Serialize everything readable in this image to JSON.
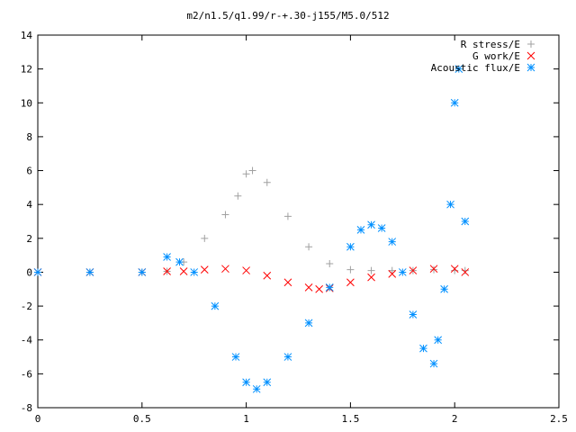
{
  "chart_data": {
    "type": "scatter",
    "title": "m2/n1.5/q1.99/r-+.30-j155/M5.0/512",
    "xlabel": "",
    "ylabel": "",
    "xlim": [
      0,
      2.5
    ],
    "ylim": [
      -8,
      14
    ],
    "x_ticks": [
      0,
      0.5,
      1,
      1.5,
      2,
      2.5
    ],
    "x_tick_labels": [
      "0",
      "0.5",
      "1",
      "1.5",
      "2",
      "2.5"
    ],
    "y_ticks": [
      -8,
      -6,
      -4,
      -2,
      0,
      2,
      4,
      6,
      8,
      10,
      12,
      14
    ],
    "y_tick_labels": [
      "-8",
      "-6",
      "-4",
      "-2",
      "0",
      "2",
      "4",
      "6",
      "8",
      "10",
      "12",
      "14"
    ],
    "grid": false,
    "legend_position": "top-right",
    "series": [
      {
        "name": "R stress/E",
        "color": "#a0a0a0",
        "marker": "plus",
        "x": [
          0.0,
          0.25,
          0.5,
          0.62,
          0.7,
          0.8,
          0.9,
          0.96,
          1.0,
          1.03,
          1.1,
          1.2,
          1.3,
          1.4,
          1.5,
          1.6,
          1.7,
          1.8,
          1.9,
          2.0,
          2.05
        ],
        "y": [
          0.0,
          0.0,
          0.0,
          0.05,
          0.6,
          2.0,
          3.4,
          4.5,
          5.8,
          6.0,
          5.3,
          3.3,
          1.5,
          0.5,
          0.15,
          0.1,
          0.1,
          0.1,
          0.15,
          0.1,
          0.1
        ]
      },
      {
        "name": "G work/E",
        "color": "#ff0000",
        "marker": "cross",
        "x": [
          0.0,
          0.25,
          0.5,
          0.62,
          0.7,
          0.8,
          0.9,
          1.0,
          1.1,
          1.2,
          1.3,
          1.35,
          1.4,
          1.5,
          1.6,
          1.7,
          1.8,
          1.9,
          2.0,
          2.05
        ],
        "y": [
          0.0,
          0.0,
          0.0,
          0.05,
          0.05,
          0.15,
          0.2,
          0.1,
          -0.2,
          -0.6,
          -0.9,
          -1.0,
          -0.95,
          -0.6,
          -0.3,
          -0.1,
          0.1,
          0.2,
          0.2,
          0.0
        ]
      },
      {
        "name": "Acoustic flux/E",
        "color": "#0090ff",
        "marker": "star",
        "x": [
          0.0,
          0.25,
          0.5,
          0.62,
          0.68,
          0.75,
          0.85,
          0.95,
          1.0,
          1.05,
          1.1,
          1.2,
          1.3,
          1.4,
          1.5,
          1.55,
          1.6,
          1.65,
          1.7,
          1.75,
          1.8,
          1.85,
          1.9,
          1.92,
          1.95,
          1.98,
          2.0,
          2.02,
          2.05
        ],
        "y": [
          0.0,
          0.0,
          0.0,
          0.9,
          0.6,
          0.0,
          -2.0,
          -5.0,
          -6.5,
          -6.9,
          -6.5,
          -5.0,
          -3.0,
          -0.9,
          1.5,
          2.5,
          2.8,
          2.6,
          1.8,
          0.0,
          -2.5,
          -4.5,
          -5.4,
          -4.0,
          -1.0,
          4.0,
          10.0,
          12.0,
          3.0
        ]
      }
    ]
  }
}
